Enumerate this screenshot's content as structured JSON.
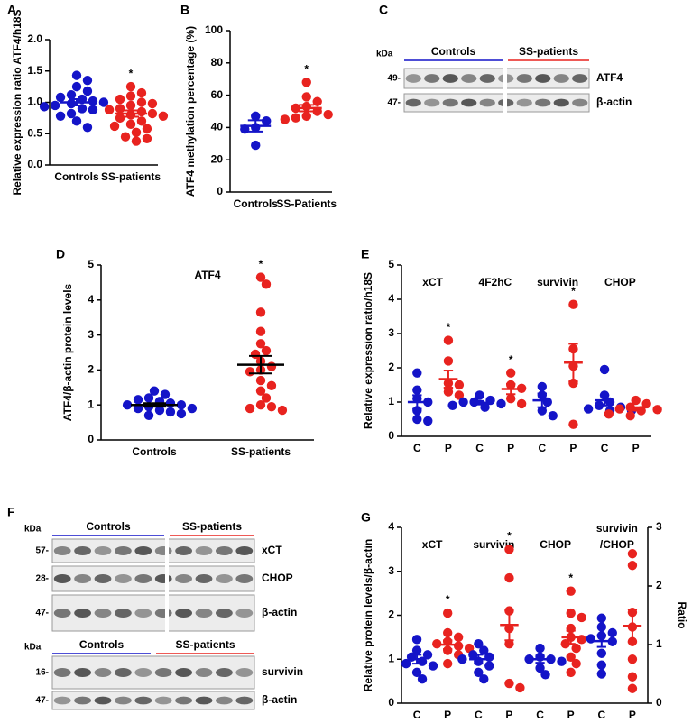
{
  "chart_data": [
    {
      "type": "dot",
      "panel": "A",
      "ylabel": "Relative expression ratio ATF4/h18S",
      "ylim": [
        0,
        2
      ],
      "yticks": [
        {
          "value": 0,
          "label": "0.0"
        },
        {
          "value": 0.5,
          "label": "0.5"
        },
        {
          "value": 1,
          "label": "1.0"
        },
        {
          "value": 1.5,
          "label": "1.5"
        },
        {
          "value": 2,
          "label": "2.0"
        }
      ],
      "groups": [
        {
          "category": "Controls",
          "color": "#1414c8",
          "values": [
            1.43,
            1.35,
            1.25,
            1.18,
            1.12,
            1.08,
            1.05,
            1.02,
            1.0,
            0.98,
            0.95,
            0.93,
            0.9,
            0.88,
            0.82,
            0.78,
            0.7,
            0.6
          ],
          "mean": 1.0,
          "sem": 0.05
        },
        {
          "category": "SS-patients",
          "color": "#e8231f",
          "values": [
            1.25,
            1.15,
            1.1,
            1.05,
            1.0,
            0.98,
            0.95,
            0.9,
            0.88,
            0.85,
            0.82,
            0.8,
            0.78,
            0.75,
            0.7,
            0.65,
            0.62,
            0.58,
            0.52,
            0.45,
            0.42,
            0.38
          ],
          "mean": 0.82,
          "sem": 0.05,
          "sig": "*"
        }
      ]
    },
    {
      "type": "dot",
      "panel": "B",
      "ylabel": "ATF4 methylation percentage (%)",
      "ylim": [
        0,
        100
      ],
      "yticks": [
        0,
        20,
        40,
        60,
        80,
        100
      ],
      "groups": [
        {
          "category": "Controls",
          "color": "#1414c8",
          "values": [
            47,
            44,
            40,
            39,
            29
          ],
          "mean": 41,
          "sem": 3.5
        },
        {
          "category": "SS-Patients",
          "color": "#e8231f",
          "values": [
            68,
            59,
            56,
            53,
            52,
            50,
            48,
            47,
            46,
            45
          ],
          "mean": 52,
          "sem": 2,
          "sig": "*"
        }
      ]
    },
    {
      "type": "dot",
      "panel": "D",
      "title": "ATF4",
      "ylabel": "ATF4/β-actin protein levels",
      "mean_color": "#000000",
      "ylim": [
        0,
        5
      ],
      "yticks": [
        0,
        1,
        2,
        3,
        4,
        5
      ],
      "groups": [
        {
          "category": "Controls",
          "color": "#1414c8",
          "values": [
            1.4,
            1.3,
            1.2,
            1.15,
            1.1,
            1.05,
            1.0,
            1.0,
            0.95,
            0.9,
            0.9,
            0.85,
            0.8,
            0.75,
            0.7
          ],
          "mean": 1.0,
          "sem": 0.05
        },
        {
          "category": "SS-patients",
          "color": "#e8231f",
          "values": [
            4.65,
            4.45,
            3.65,
            3.1,
            2.75,
            2.55,
            2.45,
            2.25,
            2.1,
            2.0,
            1.95,
            1.7,
            1.55,
            1.4,
            1.2,
            1.0,
            0.95,
            0.9,
            0.85
          ],
          "mean": 2.15,
          "sem": 0.25,
          "sig": "*"
        }
      ]
    },
    {
      "type": "dot",
      "panel": "E",
      "ylabel": "Relative expression ratio/h18S",
      "ylim": [
        0,
        5
      ],
      "yticks": [
        0,
        1,
        2,
        3,
        4,
        5
      ],
      "group_labels": [
        [
          "xCT"
        ],
        [
          "4F2hC"
        ],
        [
          "survivin"
        ],
        [
          "CHOP"
        ]
      ],
      "groups": [
        {
          "category": "C",
          "color": "#1414c8",
          "values": [
            1.85,
            1.35,
            1.1,
            1.0,
            0.75,
            0.5,
            0.45
          ],
          "mean": 1.0,
          "sem": 0.2
        },
        {
          "category": "P",
          "color": "#e8231f",
          "values": [
            2.8,
            2.2,
            1.55,
            1.5,
            1.3,
            1.2
          ],
          "mean": 1.67,
          "sem": 0.25,
          "sig": "*"
        },
        {
          "category": "C",
          "color": "#1414c8",
          "values": [
            1.2,
            1.05,
            1.0,
            1.0,
            0.95,
            0.9,
            0.85
          ],
          "mean": 0.98,
          "sem": 0.05
        },
        {
          "category": "P",
          "color": "#e8231f",
          "values": [
            1.85,
            1.5,
            1.4,
            1.1,
            0.95
          ],
          "mean": 1.38,
          "sem": 0.15,
          "sig": "*"
        },
        {
          "category": "C",
          "color": "#1414c8",
          "values": [
            1.45,
            1.2,
            1.0,
            0.75,
            0.6
          ],
          "mean": 1.05,
          "sem": 0.2
        },
        {
          "category": "P",
          "color": "#e8231f",
          "values": [
            3.85,
            2.55,
            2.05,
            1.55,
            0.35
          ],
          "mean": 2.15,
          "sem": 0.55,
          "sig": "*"
        },
        {
          "category": "C",
          "color": "#1414c8",
          "values": [
            1.95,
            1.2,
            1.0,
            0.9,
            0.85,
            0.8,
            0.75,
            0.75
          ],
          "mean": 1.05,
          "sem": 0.15
        },
        {
          "category": "P",
          "color": "#e8231f",
          "values": [
            1.05,
            0.95,
            0.85,
            0.8,
            0.78,
            0.75,
            0.65,
            0.6
          ],
          "mean": 0.8,
          "sem": 0.05
        }
      ]
    },
    {
      "type": "dot",
      "panel": "G",
      "ylabel": "Relative protein levels/β-actin",
      "y2label": "Ratio",
      "ylim": [
        0,
        4
      ],
      "yticks": [
        0,
        1,
        2,
        3,
        4
      ],
      "y2lim": [
        0,
        3
      ],
      "y2ticks": [
        0,
        1,
        2,
        3
      ],
      "group_labels": [
        [
          "xCT"
        ],
        [
          "survivin"
        ],
        [
          "CHOP"
        ],
        [
          "survivin",
          "/CHOP"
        ]
      ],
      "groups": [
        {
          "category": "C",
          "color": "#1414c8",
          "values": [
            1.45,
            1.2,
            1.1,
            1.05,
            0.95,
            0.9,
            0.85,
            0.7,
            0.55
          ],
          "mean": 1.0,
          "sem": 0.1
        },
        {
          "category": "P",
          "color": "#e8231f",
          "values": [
            2.05,
            1.6,
            1.5,
            1.4,
            1.35,
            1.3,
            1.25,
            1.2,
            1.1,
            0.9
          ],
          "mean": 1.33,
          "sem": 0.1,
          "sig": "*"
        },
        {
          "category": "C",
          "color": "#1414c8",
          "values": [
            1.35,
            1.2,
            1.1,
            1.05,
            1.0,
            0.95,
            0.85,
            0.7,
            0.55
          ],
          "mean": 1.0,
          "sem": 0.1
        },
        {
          "category": "P",
          "color": "#e8231f",
          "values": [
            3.5,
            2.85,
            2.1,
            1.7,
            1.35,
            0.45,
            0.35
          ],
          "mean": 1.78,
          "sem": 0.35,
          "sig": "*"
        },
        {
          "category": "C",
          "color": "#1414c8",
          "values": [
            1.25,
            1.05,
            1.0,
            1.0,
            0.95,
            0.8,
            0.65
          ],
          "mean": 1.0,
          "sem": 0.08
        },
        {
          "category": "P",
          "color": "#e8231f",
          "values": [
            2.55,
            2.05,
            1.95,
            1.7,
            1.5,
            1.45,
            1.35,
            1.25,
            1.05,
            0.9,
            0.7
          ],
          "mean": 1.5,
          "sem": 0.15,
          "sig": "*"
        },
        {
          "category": "C",
          "color": "#1414c8",
          "axis": "y2",
          "values": [
            1.45,
            1.3,
            1.2,
            1.15,
            1.1,
            1.05,
            0.85,
            0.65,
            0.5
          ],
          "mean": 1.06,
          "sem": 0.1
        },
        {
          "category": "P",
          "color": "#e8231f",
          "axis": "y2",
          "values": [
            2.55,
            2.35,
            1.55,
            1.3,
            1.05,
            0.75,
            0.45,
            0.25
          ],
          "mean": 1.32,
          "sem": 0.28
        }
      ]
    }
  ],
  "blots": [
    {
      "panel": "C",
      "unit": "kDa",
      "groups": [
        {
          "name": "Controls",
          "color": "#1414c8"
        },
        {
          "name": "SS-patients",
          "color": "#e8231f"
        }
      ],
      "rows": [
        {
          "marker": "49-",
          "label": "ATF4"
        },
        {
          "marker": "47-",
          "label": "β-actin"
        }
      ]
    },
    {
      "panel": "F",
      "unit": "kDa",
      "groups": [
        {
          "name": "Controls",
          "color": "#1414c8"
        },
        {
          "name": "SS-patients",
          "color": "#e8231f"
        }
      ],
      "rows": [
        {
          "marker": "57-",
          "label": "xCT"
        },
        {
          "marker": "28-",
          "label": "CHOP"
        },
        {
          "marker": "47-",
          "label": "β-actin"
        }
      ]
    },
    {
      "unit": "kDa",
      "groups": [
        {
          "name": "Controls",
          "color": "#1414c8"
        },
        {
          "name": "SS-patients",
          "color": "#e8231f"
        }
      ],
      "rows": [
        {
          "marker": "16-",
          "label": "survivin"
        },
        {
          "marker": "47-",
          "label": "β-actin"
        }
      ]
    }
  ]
}
